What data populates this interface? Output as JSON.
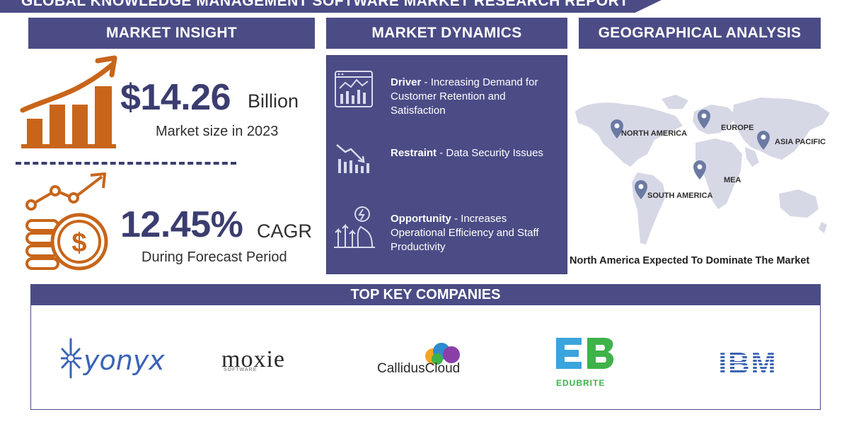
{
  "banner": {
    "title": "GLOBAL KNOWLEDGE MANAGEMENT SOFTWARE MARKET RESEARCH REPORT"
  },
  "sections": {
    "market_insight": "MARKET INSIGHT",
    "market_dynamics": "MARKET DYNAMICS",
    "geographical_analysis": "GEOGRAPHICAL ANALYSIS",
    "top_key_companies": "TOP KEY COMPANIES"
  },
  "market_insight": {
    "market_size_value": "$14.26",
    "market_size_unit": "Billion",
    "market_size_label": "Market size in 2023",
    "cagr_value": "12.45%",
    "cagr_unit": "CAGR",
    "cagr_label": "During Forecast Period"
  },
  "market_dynamics": {
    "driver": {
      "title": "Driver",
      "text": " - Increasing Demand for Customer Retention and Satisfaction"
    },
    "restraint": {
      "title": "Restraint",
      "text": " - Data Security Issues"
    },
    "opportunity": {
      "title": "Opportunity",
      "text": " - Increases Operational Efficiency and Staff Productivity"
    }
  },
  "geography": {
    "regions": [
      "NORTH AMERICA",
      "EUROPE",
      "ASIA PACIFIC",
      "MEA",
      "SOUTH AMERICA"
    ],
    "caption": "North America Expected To Dominate The Market"
  },
  "companies": {
    "yonyx": "yonyx",
    "moxie": "moxie",
    "moxie_sub": "SOFTWARE",
    "callidus": "CallidusCloud",
    "edubrite": "EDUBRITE",
    "edubrite_mark": "EB",
    "ibm": "IBM"
  },
  "colors": {
    "brand": "#4b4c86",
    "accent_orange": "#c8651a",
    "map_grey": "#d6d8e6",
    "pin": "#6b7aa3"
  }
}
